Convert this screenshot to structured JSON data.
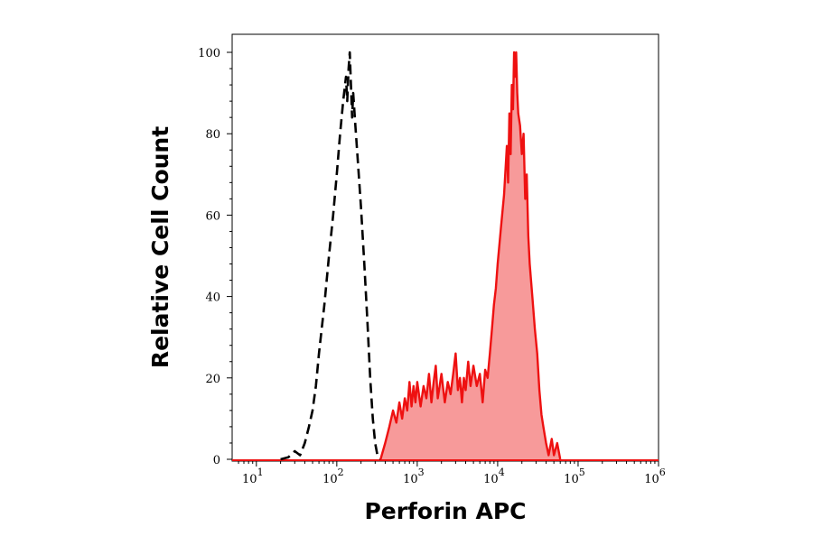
{
  "chart_data": {
    "type": "area",
    "title": "",
    "xlabel": "Perforin APC",
    "ylabel": "Relative Cell Count",
    "x_scale": "log",
    "xlim": [
      5,
      1000000
    ],
    "ylim": [
      0,
      100
    ],
    "x_ticks": [
      {
        "value": 10,
        "base": "10",
        "exp": "1"
      },
      {
        "value": 100,
        "base": "10",
        "exp": "2"
      },
      {
        "value": 1000,
        "base": "10",
        "exp": "3"
      },
      {
        "value": 10000,
        "base": "10",
        "exp": "4"
      },
      {
        "value": 100000,
        "base": "10",
        "exp": "5"
      },
      {
        "value": 1000000,
        "base": "10",
        "exp": "6"
      }
    ],
    "y_ticks": [
      "0",
      "20",
      "40",
      "60",
      "80",
      "100"
    ],
    "grid": false,
    "legend": "none",
    "series": [
      {
        "style": "dashed",
        "fill": false,
        "color": "#000000",
        "points": [
          [
            20,
            0
          ],
          [
            25,
            0.5
          ],
          [
            30,
            2
          ],
          [
            35,
            1
          ],
          [
            40,
            4
          ],
          [
            45,
            8
          ],
          [
            50,
            12
          ],
          [
            55,
            18
          ],
          [
            60,
            26
          ],
          [
            70,
            38
          ],
          [
            80,
            50
          ],
          [
            90,
            60
          ],
          [
            100,
            70
          ],
          [
            110,
            80
          ],
          [
            120,
            88
          ],
          [
            130,
            94
          ],
          [
            135,
            88
          ],
          [
            140,
            96
          ],
          [
            145,
            100
          ],
          [
            150,
            92
          ],
          [
            155,
            84
          ],
          [
            160,
            90
          ],
          [
            170,
            82
          ],
          [
            180,
            75
          ],
          [
            200,
            62
          ],
          [
            220,
            48
          ],
          [
            240,
            34
          ],
          [
            260,
            20
          ],
          [
            280,
            10
          ],
          [
            300,
            4
          ],
          [
            320,
            1
          ],
          [
            350,
            0
          ]
        ]
      },
      {
        "style": "solid",
        "fill": true,
        "color": "#ee1111",
        "fill_color": "#f79a9a",
        "points": [
          [
            350,
            0
          ],
          [
            400,
            4
          ],
          [
            450,
            8
          ],
          [
            500,
            12
          ],
          [
            550,
            9
          ],
          [
            600,
            14
          ],
          [
            650,
            10
          ],
          [
            700,
            15
          ],
          [
            750,
            12
          ],
          [
            800,
            19
          ],
          [
            850,
            13
          ],
          [
            900,
            18
          ],
          [
            950,
            14
          ],
          [
            1000,
            19
          ],
          [
            1100,
            13
          ],
          [
            1200,
            18
          ],
          [
            1300,
            15
          ],
          [
            1400,
            21
          ],
          [
            1500,
            14
          ],
          [
            1600,
            19
          ],
          [
            1700,
            23
          ],
          [
            1800,
            15
          ],
          [
            1900,
            18
          ],
          [
            2000,
            21
          ],
          [
            2200,
            14
          ],
          [
            2400,
            19
          ],
          [
            2600,
            16
          ],
          [
            2800,
            21
          ],
          [
            3000,
            26
          ],
          [
            3200,
            17
          ],
          [
            3400,
            20
          ],
          [
            3600,
            14
          ],
          [
            3800,
            20
          ],
          [
            4000,
            17
          ],
          [
            4300,
            24
          ],
          [
            4600,
            18
          ],
          [
            5000,
            23
          ],
          [
            5500,
            18
          ],
          [
            6000,
            21
          ],
          [
            6500,
            14
          ],
          [
            7000,
            22
          ],
          [
            7500,
            20
          ],
          [
            8000,
            26
          ],
          [
            8500,
            32
          ],
          [
            9000,
            38
          ],
          [
            9500,
            42
          ],
          [
            10000,
            48
          ],
          [
            11000,
            57
          ],
          [
            12000,
            65
          ],
          [
            13000,
            77
          ],
          [
            13500,
            68
          ],
          [
            14000,
            85
          ],
          [
            14500,
            75
          ],
          [
            15000,
            92
          ],
          [
            15500,
            86
          ],
          [
            16000,
            100
          ],
          [
            16500,
            94
          ],
          [
            17000,
            100
          ],
          [
            17500,
            90
          ],
          [
            18000,
            85
          ],
          [
            19000,
            82
          ],
          [
            20000,
            75
          ],
          [
            21000,
            80
          ],
          [
            22000,
            64
          ],
          [
            23000,
            70
          ],
          [
            24000,
            55
          ],
          [
            25000,
            48
          ],
          [
            27000,
            40
          ],
          [
            29000,
            32
          ],
          [
            31000,
            26
          ],
          [
            33000,
            17
          ],
          [
            35000,
            11
          ],
          [
            37000,
            8
          ],
          [
            40000,
            4
          ],
          [
            43000,
            1
          ],
          [
            47000,
            5
          ],
          [
            50000,
            1
          ],
          [
            55000,
            4
          ],
          [
            60000,
            0
          ]
        ]
      }
    ]
  }
}
